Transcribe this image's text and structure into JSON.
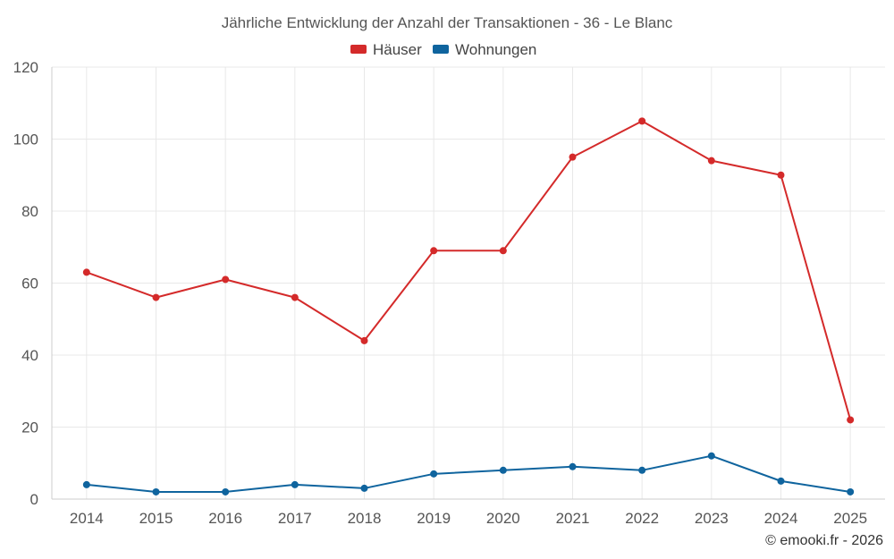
{
  "chart_data": {
    "type": "line",
    "title": "Jährliche Entwicklung der Anzahl der Transaktionen - 36 - Le Blanc",
    "categories": [
      "2014",
      "2015",
      "2016",
      "2017",
      "2018",
      "2019",
      "2020",
      "2021",
      "2022",
      "2023",
      "2024",
      "2025"
    ],
    "series": [
      {
        "name": "Häuser",
        "color": "#d42a2a",
        "values": [
          63,
          56,
          61,
          56,
          44,
          69,
          69,
          95,
          105,
          94,
          90,
          22
        ]
      },
      {
        "name": "Wohnungen",
        "color": "#0f649e",
        "values": [
          4,
          2,
          2,
          4,
          3,
          7,
          8,
          9,
          8,
          12,
          5,
          2
        ]
      }
    ],
    "xlabel": "",
    "ylabel": "",
    "ylim": [
      0,
      120
    ],
    "yticks": [
      "0",
      "20",
      "40",
      "60",
      "80",
      "100",
      "120"
    ],
    "grid": true,
    "legend": "top-center"
  },
  "credit": "© emooki.fr - 2026"
}
